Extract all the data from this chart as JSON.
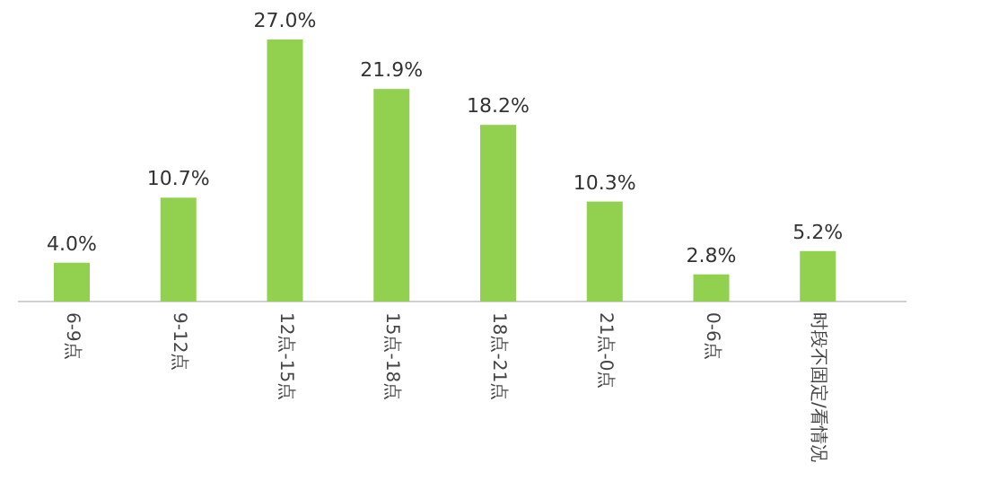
{
  "chart_data": {
    "type": "bar",
    "categories": [
      "6-9点",
      "9-12点",
      "12点-15点",
      "15点-18点",
      "18点-21点",
      "21点-0点",
      "0-6点",
      "时段不固定/看情况"
    ],
    "values": [
      4.0,
      10.7,
      27.0,
      21.9,
      18.2,
      10.3,
      2.8,
      5.2
    ],
    "value_labels": [
      "4.0%",
      "10.7%",
      "27.0%",
      "21.9%",
      "18.2%",
      "10.3%",
      "2.8%",
      "5.2%"
    ],
    "color": "#92d050"
  }
}
